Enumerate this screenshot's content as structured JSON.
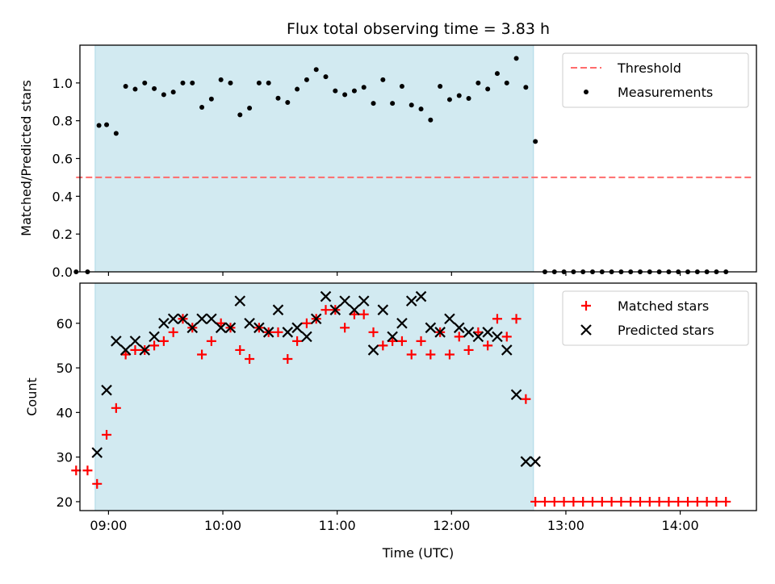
{
  "figure": {
    "title": "Flux total observing time = 3.83 h",
    "xlabel": "Time (UTC)",
    "x_tick_labels": [
      "09:00",
      "10:00",
      "11:00",
      "12:00",
      "13:00",
      "14:00"
    ]
  },
  "colors": {
    "observing_window": "#add8e6",
    "threshold": "#ff6b6b",
    "measurements": "#000000",
    "matched": "#ff0000",
    "predicted": "#000000"
  },
  "chart_data": [
    {
      "type": "scatter",
      "ylabel": "Matched/Predicted stars",
      "ylim": [
        0,
        1.2
      ],
      "xlim": [
        "08:45",
        "14:40"
      ],
      "y_ticks": [
        0.0,
        0.2,
        0.4,
        0.6,
        0.8,
        1.0
      ],
      "y_tick_labels": [
        "0.0",
        "0.2",
        "0.4",
        "0.6",
        "0.8",
        "1.0"
      ],
      "observing_window": {
        "start": "08:53",
        "end": "12:43"
      },
      "threshold": {
        "name": "Threshold",
        "value": 0.5,
        "x_range": [
          "08:43",
          "14:38"
        ]
      },
      "legend": {
        "position": "top-right",
        "entries": [
          "Threshold",
          "Measurements"
        ]
      },
      "series": [
        {
          "name": "Measurements",
          "marker": "dot",
          "x": [
            "08:43",
            "08:49",
            "08:55",
            "08:59",
            "09:04",
            "09:09",
            "09:14",
            "09:19",
            "09:24",
            "09:29",
            "09:34",
            "09:39",
            "09:44",
            "09:49",
            "09:54",
            "09:59",
            "10:04",
            "10:09",
            "10:14",
            "10:19",
            "10:24",
            "10:29",
            "10:34",
            "10:39",
            "10:44",
            "10:49",
            "10:54",
            "10:59",
            "11:04",
            "11:09",
            "11:14",
            "11:19",
            "11:24",
            "11:29",
            "11:34",
            "11:39",
            "11:44",
            "11:49",
            "11:54",
            "11:59",
            "12:04",
            "12:09",
            "12:14",
            "12:19",
            "12:24",
            "12:29",
            "12:34",
            "12:39",
            "12:44",
            "12:49",
            "12:54",
            "12:59",
            "13:04",
            "13:09",
            "13:14",
            "13:19",
            "13:24",
            "13:29",
            "13:34",
            "13:39",
            "13:44",
            "13:49",
            "13:54",
            "13:59",
            "14:04",
            "14:09",
            "14:14",
            "14:19",
            "14:24"
          ],
          "y": [
            0,
            0,
            0.775,
            0.779,
            0.733,
            0.982,
            0.967,
            1.0,
            0.97,
            0.938,
            0.952,
            1.0,
            1.0,
            0.871,
            0.915,
            1.017,
            1.0,
            0.831,
            0.867,
            1.0,
            1.0,
            0.919,
            0.897,
            0.967,
            1.017,
            1.071,
            1.033,
            0.958,
            0.938,
            0.958,
            0.977,
            0.892,
            1.017,
            0.892,
            0.982,
            0.883,
            0.862,
            0.804,
            0.982,
            0.912,
            0.933,
            0.918,
            1.0,
            0.968,
            1.05,
            1.0,
            1.13,
            0.977,
            0.69,
            0,
            0,
            0,
            0,
            0,
            0,
            0,
            0,
            0,
            0,
            0,
            0,
            0,
            0,
            0,
            0,
            0,
            0,
            0,
            0
          ]
        }
      ]
    },
    {
      "type": "scatter",
      "ylabel": "Count",
      "ylim": [
        18,
        69
      ],
      "xlim": [
        "08:45",
        "14:40"
      ],
      "y_ticks": [
        20,
        30,
        40,
        50,
        60
      ],
      "y_tick_labels": [
        "20",
        "30",
        "40",
        "50",
        "60"
      ],
      "observing_window": {
        "start": "08:53",
        "end": "12:43"
      },
      "legend": {
        "position": "top-right",
        "entries": [
          "Matched stars",
          "Predicted stars"
        ]
      },
      "series": [
        {
          "name": "Matched stars",
          "marker": "plus",
          "x": [
            "08:43",
            "08:49",
            "08:54",
            "08:59",
            "09:04",
            "09:09",
            "09:14",
            "09:19",
            "09:24",
            "09:29",
            "09:34",
            "09:39",
            "09:44",
            "09:49",
            "09:54",
            "09:59",
            "10:04",
            "10:09",
            "10:14",
            "10:19",
            "10:24",
            "10:29",
            "10:34",
            "10:39",
            "10:44",
            "10:49",
            "10:54",
            "10:59",
            "11:04",
            "11:09",
            "11:14",
            "11:19",
            "11:24",
            "11:29",
            "11:34",
            "11:39",
            "11:44",
            "11:49",
            "11:54",
            "11:59",
            "12:04",
            "12:09",
            "12:14",
            "12:19",
            "12:24",
            "12:29",
            "12:34",
            "12:39",
            "12:44",
            "12:49",
            "12:54",
            "12:59",
            "13:04",
            "13:09",
            "13:14",
            "13:19",
            "13:24",
            "13:29",
            "13:34",
            "13:39",
            "13:44",
            "13:49",
            "13:54",
            "13:59",
            "14:04",
            "14:09",
            "14:14",
            "14:19",
            "14:24"
          ],
          "y": [
            27,
            27,
            24,
            35,
            41,
            53,
            54,
            54,
            55,
            56,
            58,
            61,
            59,
            53,
            56,
            60,
            59,
            54,
            52,
            59,
            58,
            58,
            52,
            56,
            60,
            61,
            63,
            63,
            59,
            62,
            62,
            58,
            55,
            56,
            56,
            53,
            56,
            53,
            58,
            53,
            57,
            54,
            58,
            55,
            61,
            57,
            61,
            43,
            20,
            20,
            20,
            20,
            20,
            20,
            20,
            20,
            20,
            20,
            20,
            20,
            20,
            20,
            20,
            20,
            20,
            20,
            20,
            20,
            20
          ]
        },
        {
          "name": "Predicted stars",
          "marker": "x",
          "x": [
            "08:54",
            "08:59",
            "09:04",
            "09:09",
            "09:14",
            "09:19",
            "09:24",
            "09:29",
            "09:34",
            "09:39",
            "09:44",
            "09:49",
            "09:54",
            "09:59",
            "10:04",
            "10:09",
            "10:14",
            "10:19",
            "10:24",
            "10:29",
            "10:34",
            "10:39",
            "10:44",
            "10:49",
            "10:54",
            "10:59",
            "11:04",
            "11:09",
            "11:14",
            "11:19",
            "11:24",
            "11:29",
            "11:34",
            "11:39",
            "11:44",
            "11:49",
            "11:54",
            "11:59",
            "12:04",
            "12:09",
            "12:14",
            "12:19",
            "12:24",
            "12:29",
            "12:34",
            "12:39",
            "12:44"
          ],
          "y": [
            31,
            45,
            56,
            54,
            56,
            54,
            57,
            60,
            61,
            61,
            59,
            61,
            61,
            59,
            59,
            65,
            60,
            59,
            58,
            63,
            58,
            59,
            57,
            61,
            66,
            63,
            65,
            63,
            65,
            54,
            63,
            57,
            60,
            65,
            66,
            59,
            58,
            61,
            59,
            58,
            57,
            58,
            57,
            54,
            44,
            29,
            29
          ]
        }
      ]
    }
  ]
}
